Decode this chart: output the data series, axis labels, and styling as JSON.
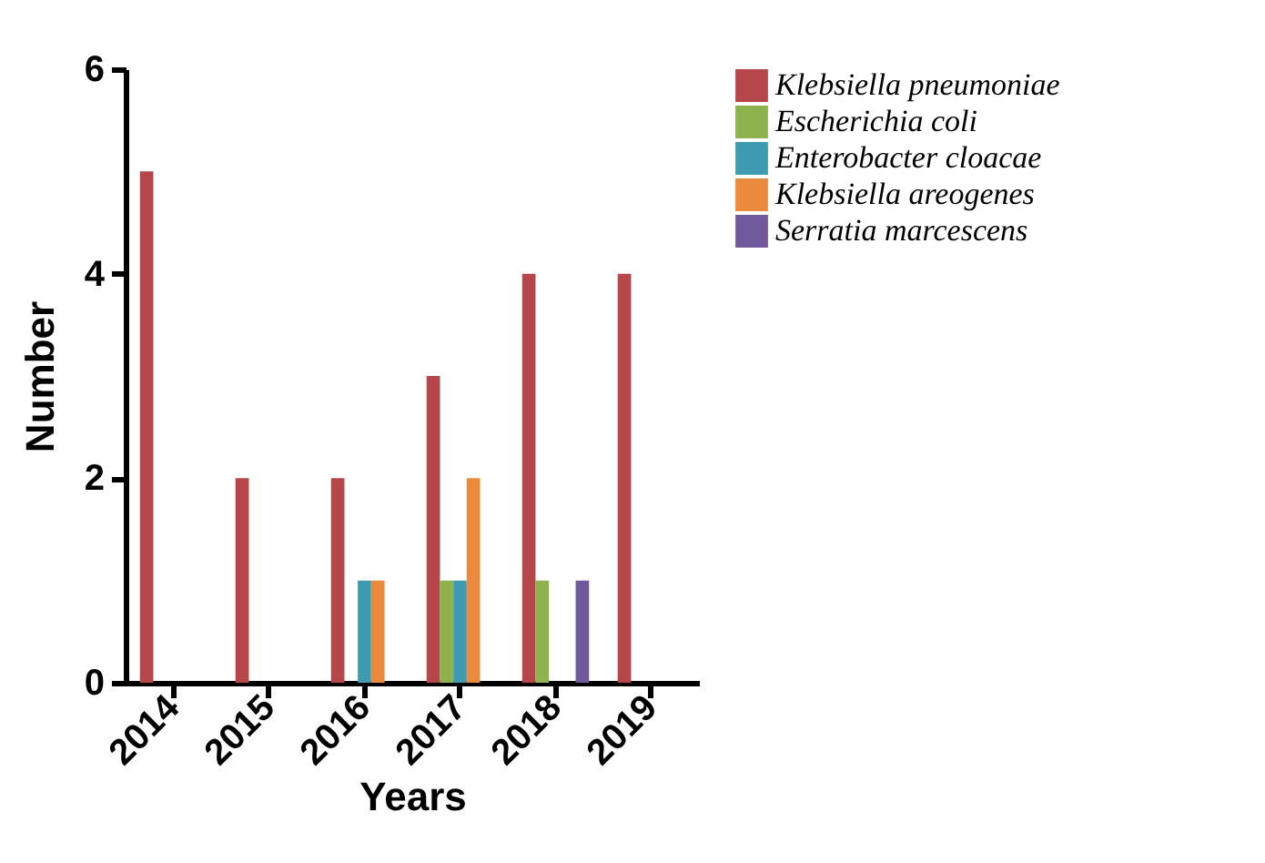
{
  "chart_data": {
    "type": "bar",
    "xlabel": "Years",
    "ylabel": "Number",
    "categories": [
      "2014",
      "2015",
      "2016",
      "2017",
      "2018",
      "2019"
    ],
    "series": [
      {
        "name": "Klebsiella pneumoniae",
        "color": "#b5474b",
        "values": [
          5,
          2,
          2,
          3,
          4,
          4
        ]
      },
      {
        "name": "Escherichia coli",
        "color": "#8db24e",
        "values": [
          0,
          0,
          0,
          1,
          1,
          0
        ]
      },
      {
        "name": "Enterobacter cloacae",
        "color": "#3e9bb2",
        "values": [
          0,
          0,
          1,
          1,
          0,
          0
        ]
      },
      {
        "name": "Klebsiella areogenes",
        "color": "#e98a3d",
        "values": [
          0,
          0,
          1,
          2,
          0,
          0
        ]
      },
      {
        "name": "Serratia marcescens",
        "color": "#715a9b",
        "values": [
          0,
          0,
          0,
          0,
          1,
          0
        ]
      }
    ],
    "ylim": [
      0,
      6
    ],
    "yticks": [
      0,
      2,
      4,
      6
    ],
    "grid": false,
    "legend": "top right"
  }
}
